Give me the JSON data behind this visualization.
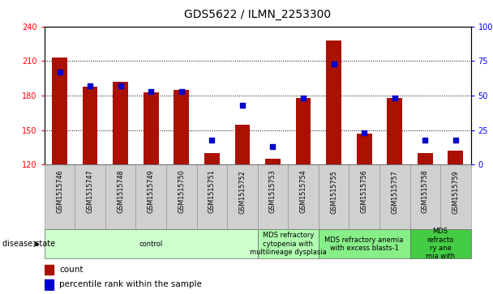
{
  "title": "GDS5622 / ILMN_2253300",
  "samples": [
    "GSM1515746",
    "GSM1515747",
    "GSM1515748",
    "GSM1515749",
    "GSM1515750",
    "GSM1515751",
    "GSM1515752",
    "GSM1515753",
    "GSM1515754",
    "GSM1515755",
    "GSM1515756",
    "GSM1515757",
    "GSM1515758",
    "GSM1515759"
  ],
  "counts": [
    213,
    188,
    192,
    183,
    185,
    130,
    155,
    125,
    178,
    228,
    147,
    178,
    130,
    132
  ],
  "percentile_ranks": [
    67,
    57,
    57,
    53,
    53,
    18,
    43,
    13,
    48,
    73,
    23,
    48,
    18,
    18
  ],
  "ylim_left": [
    120,
    240
  ],
  "ylim_right": [
    0,
    100
  ],
  "yticks_left": [
    120,
    150,
    180,
    210,
    240
  ],
  "yticks_right": [
    0,
    25,
    50,
    75,
    100
  ],
  "bar_color": "#aa1100",
  "dot_color": "#0000cc",
  "background_color": "#ffffff",
  "plot_bg_color": "#ffffff",
  "tick_bg_color": "#d0d0d0",
  "groups": [
    {
      "label": "control",
      "start": 0,
      "end": 7,
      "color": "#ccffcc"
    },
    {
      "label": "MDS refractory\ncytopenia with\nmultilineage dysplasia",
      "start": 7,
      "end": 9,
      "color": "#b0ffb0"
    },
    {
      "label": "MDS refractory anemia\nwith excess blasts-1",
      "start": 9,
      "end": 12,
      "color": "#88ee88"
    },
    {
      "label": "MDS\nrefracto\nry ane\nmia with",
      "start": 12,
      "end": 14,
      "color": "#44cc44"
    }
  ],
  "title_fontsize": 10,
  "axis_label_fontsize": 7,
  "tick_fontsize": 7,
  "sample_fontsize": 5.8,
  "group_fontsize": 6,
  "legend_fontsize": 7.5
}
